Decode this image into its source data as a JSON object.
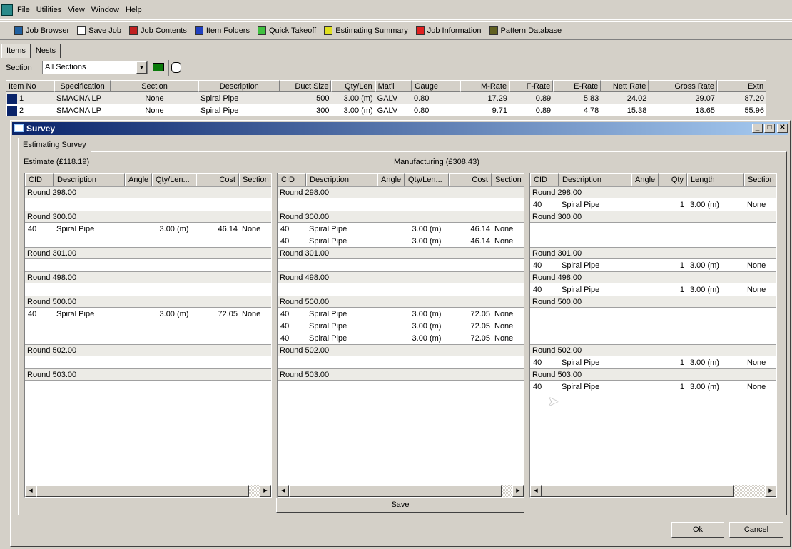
{
  "menu": {
    "items": [
      "File",
      "Utilities",
      "View",
      "Window",
      "Help"
    ]
  },
  "toolbar": {
    "items": [
      {
        "label": "Job Browser",
        "icon": "job-browser-icon",
        "color": "#2060a0"
      },
      {
        "label": "Save Job",
        "icon": "save-icon",
        "color": "#ffffff"
      },
      {
        "label": "Job Contents",
        "icon": "job-contents-icon",
        "color": "#c02020"
      },
      {
        "label": "Item Folders",
        "icon": "item-folders-icon",
        "color": "#2040c0"
      },
      {
        "label": "Quick Takeoff",
        "icon": "quick-takeoff-icon",
        "color": "#40c040"
      },
      {
        "label": "Estimating Summary",
        "icon": "dollar-icon",
        "color": "#e0e020"
      },
      {
        "label": "Job Information",
        "icon": "info-icon",
        "color": "#e02020"
      },
      {
        "label": "Pattern Database",
        "icon": "pattern-database-icon",
        "color": "#606020"
      }
    ]
  },
  "tabs": [
    "Items",
    "Nests"
  ],
  "section": {
    "label": "Section",
    "value": "All Sections"
  },
  "items_table": {
    "columns": [
      "Item No",
      "Specification",
      "Section",
      "Description",
      "Duct Size",
      "Qty/Len",
      "Mat'l",
      "Gauge",
      "M-Rate",
      "F-Rate",
      "E-Rate",
      "Nett Rate",
      "Gross Rate",
      "Extn"
    ],
    "rows": [
      [
        "1",
        "SMACNA LP",
        "None",
        "Spiral Pipe",
        "500",
        "3.00 (m)",
        "GALV",
        "0.80",
        "17.29",
        "0.89",
        "5.83",
        "24.02",
        "29.07",
        "87.20"
      ],
      [
        "2",
        "SMACNA LP",
        "None",
        "Spiral Pipe",
        "300",
        "3.00 (m)",
        "GALV",
        "0.80",
        "9.71",
        "0.89",
        "4.78",
        "15.38",
        "18.65",
        "55.96"
      ]
    ]
  },
  "dialog": {
    "title": "Survey",
    "tab": "Estimating Survey",
    "estimate_label": "Estimate (£118.19)",
    "manufacturing_label": "Manufacturing (£308.43)",
    "save": "Save",
    "ok": "Ok",
    "cancel": "Cancel"
  },
  "lists": [
    {
      "columns": [
        "CID",
        "Description",
        "Angle",
        "Qty/Len...",
        "Cost",
        "Section"
      ],
      "groups": [
        {
          "name": "Round 298.00",
          "items": []
        },
        {
          "name": "Round 300.00",
          "items": [
            [
              "40",
              "Spiral Pipe",
              "",
              "3.00 (m)",
              "46.14",
              "None"
            ]
          ]
        },
        {
          "name": "Round 301.00",
          "items": []
        },
        {
          "name": "Round 498.00",
          "items": []
        },
        {
          "name": "Round 500.00",
          "items": [
            [
              "40",
              "Spiral Pipe",
              "",
              "3.00 (m)",
              "72.05",
              "None"
            ]
          ]
        },
        {
          "name": "Round 502.00",
          "items": []
        },
        {
          "name": "Round 503.00",
          "items": []
        }
      ]
    },
    {
      "columns": [
        "CID",
        "Description",
        "Angle",
        "Qty/Len...",
        "Cost",
        "Section"
      ],
      "groups": [
        {
          "name": "Round 298.00",
          "items": []
        },
        {
          "name": "Round 300.00",
          "items": [
            [
              "40",
              "Spiral Pipe",
              "",
              "3.00 (m)",
              "46.14",
              "None"
            ],
            [
              "40",
              "Spiral Pipe",
              "",
              "3.00 (m)",
              "46.14",
              "None"
            ]
          ]
        },
        {
          "name": "Round 301.00",
          "items": []
        },
        {
          "name": "Round 498.00",
          "items": []
        },
        {
          "name": "Round 500.00",
          "items": [
            [
              "40",
              "Spiral Pipe",
              "",
              "3.00 (m)",
              "72.05",
              "None"
            ],
            [
              "40",
              "Spiral Pipe",
              "",
              "3.00 (m)",
              "72.05",
              "None"
            ],
            [
              "40",
              "Spiral Pipe",
              "",
              "3.00 (m)",
              "72.05",
              "None"
            ]
          ]
        },
        {
          "name": "Round 502.00",
          "items": []
        },
        {
          "name": "Round 503.00",
          "items": []
        }
      ]
    },
    {
      "columns": [
        "CID",
        "Description",
        "Angle",
        "Qty",
        "Length",
        "Section"
      ],
      "groups": [
        {
          "name": "Round 298.00",
          "items": [
            [
              "40",
              "Spiral Pipe",
              "",
              "1",
              "3.00 (m)",
              "None"
            ]
          ]
        },
        {
          "name": "Round 300.00",
          "items": []
        },
        {
          "name": "Round 301.00",
          "items": [
            [
              "40",
              "Spiral Pipe",
              "",
              "1",
              "3.00 (m)",
              "None"
            ]
          ]
        },
        {
          "name": "Round 498.00",
          "items": [
            [
              "40",
              "Spiral Pipe",
              "",
              "1",
              "3.00 (m)",
              "None"
            ]
          ]
        },
        {
          "name": "Round 500.00",
          "items": []
        },
        {
          "name": "Round 502.00",
          "items": [
            [
              "40",
              "Spiral Pipe",
              "",
              "1",
              "3.00 (m)",
              "None"
            ]
          ]
        },
        {
          "name": "Round 503.00",
          "items": [
            [
              "40",
              "Spiral Pipe",
              "",
              "1",
              "3.00 (m)",
              "None"
            ]
          ]
        }
      ]
    }
  ]
}
